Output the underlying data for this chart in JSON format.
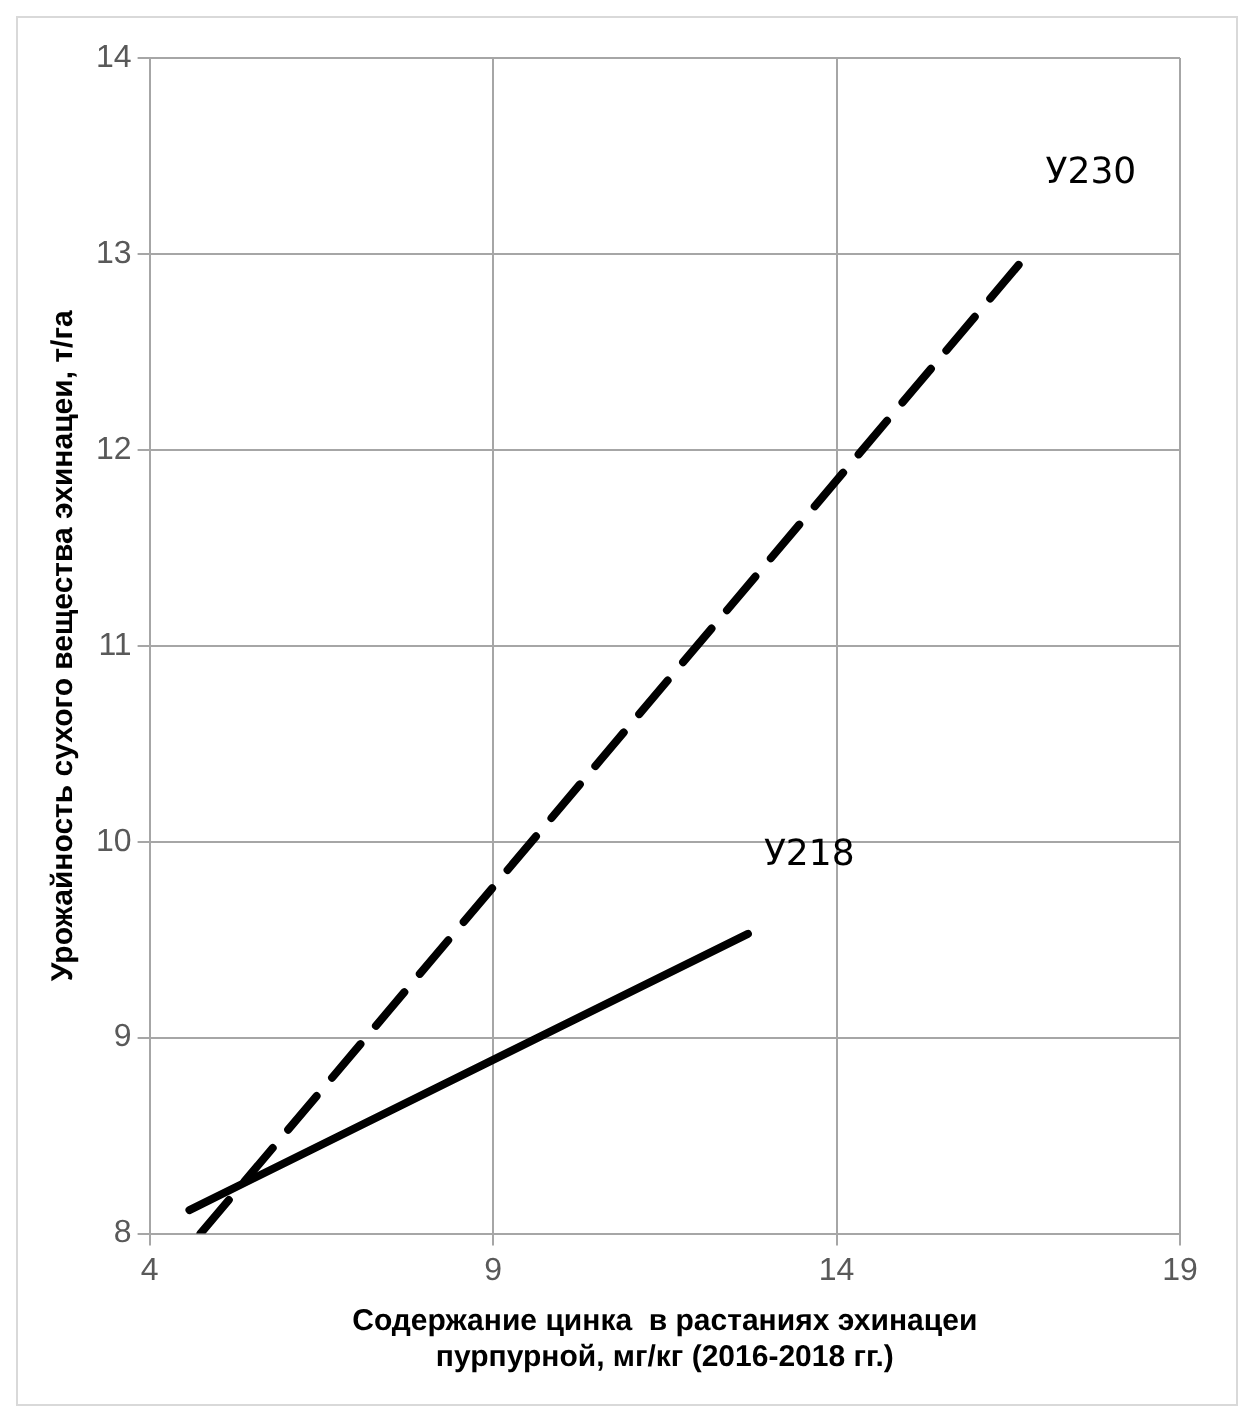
{
  "chart_data": {
    "type": "line",
    "xlabel": "Содержание цинка  в растаниях эхинацеи пурпурной, мг/кг (2016-2018 гг.)",
    "ylabel": "Урожайность сухого вещества эхинацеи, т/га",
    "xlim": [
      4,
      19
    ],
    "xticks": [
      4,
      9,
      14,
      19
    ],
    "ylim": [
      8,
      14
    ],
    "yticks": [
      8,
      9,
      10,
      11,
      12,
      13,
      14
    ],
    "grid": true,
    "legend": false,
    "marker": "none",
    "series": [
      {
        "name": "У230",
        "color": "#000000",
        "line_style": "dashed",
        "x": [
          4.74,
          16.81
        ],
        "values": [
          8,
          13.01
        ]
      },
      {
        "name": "У218",
        "color": "#000000",
        "line_style": "solid",
        "x": [
          4.58,
          12.71
        ],
        "values": [
          8.12,
          9.53
        ]
      }
    ]
  }
}
